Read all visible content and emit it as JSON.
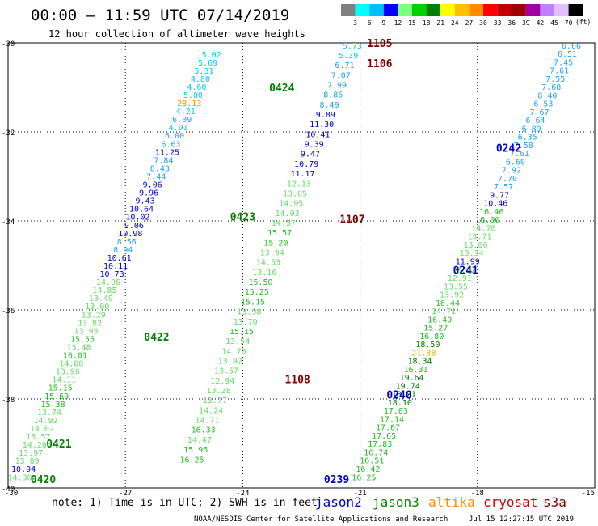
{
  "header": {
    "title": "00:00 – 11:59 UTC 07/14/2019",
    "subtitle": "12 hour collection of altimeter wave heights",
    "units_label": "(ft)"
  },
  "color_scale": {
    "ticks": [
      "3",
      "6",
      "9",
      "12",
      "15",
      "18",
      "21",
      "24",
      "27",
      "30",
      "33",
      "36",
      "39",
      "42",
      "45",
      "70"
    ],
    "colors": [
      "#808080",
      "#00ffff",
      "#00bfff",
      "#0000ff",
      "#7fff7f",
      "#00d000",
      "#008000",
      "#ffff00",
      "#ffc000",
      "#ff8c00",
      "#ff0000",
      "#c00000",
      "#a00000",
      "#a000a0",
      "#c080ff",
      "#e0c0ff",
      "#000000"
    ]
  },
  "footer": {
    "note": "note: 1) Time is in UTC; 2) SWH is in feet",
    "credit": "NOAA/NESDIS Center for Satellite Applications and Research",
    "generated": "Jul 15 12:27:15 UTC 2019"
  },
  "legend": [
    {
      "label": "jason2",
      "color": "#0000cc"
    },
    {
      "label": "jason3",
      "color": "#008000"
    },
    {
      "label": "altika",
      "color": "#ff8c00"
    },
    {
      "label": "cryosat",
      "color": "#cc0000"
    },
    {
      "label": "s3a",
      "color": "#800000"
    }
  ],
  "chart_data": {
    "type": "scatter",
    "title": "12 hour collection of altimeter wave heights",
    "xlim": [
      -30,
      -15
    ],
    "ylim": [
      -40,
      -30
    ],
    "x_ticks": [
      "-30",
      "-27",
      "-24",
      "-21",
      "-18",
      "-15"
    ],
    "y_ticks": [
      "-30",
      "-32",
      "-34",
      "-36",
      "-38",
      "-40"
    ],
    "grid": true,
    "value_colors": [
      {
        "max": 3,
        "color": "#808080"
      },
      {
        "max": 6,
        "color": "#00ccff"
      },
      {
        "max": 9,
        "color": "#1ea0ff"
      },
      {
        "max": 12,
        "color": "#0000cc"
      },
      {
        "max": 15,
        "color": "#66dd66"
      },
      {
        "max": 18,
        "color": "#22bb22"
      },
      {
        "max": 21,
        "color": "#007700"
      },
      {
        "max": 24,
        "color": "#e0c000"
      },
      {
        "max": 27,
        "color": "#ffb000"
      },
      {
        "max": 30,
        "color": "#ff8c00"
      }
    ],
    "tracks": [
      {
        "values": [
          "5.02",
          "5.69",
          "5.31",
          "4.80",
          "4.60",
          "5.00",
          "28.13",
          "4.21",
          "6.09",
          "4.91",
          "6.00",
          "6.63",
          "11.25",
          "7.84",
          "8.43",
          "7.44",
          "9.06",
          "9.96",
          "9.43",
          "10.64",
          "10.02",
          "9.06",
          "10.98",
          "8.56",
          "8.94",
          "10.61",
          "10.11",
          "10.73",
          "14.06",
          "14.85",
          "13.49",
          "13.00",
          "13.29",
          "13.82",
          "13.93",
          "15.55",
          "13.48",
          "16.01",
          "14.88",
          "13.96",
          "14.11",
          "15.15",
          "15.69",
          "15.38",
          "13.74",
          "14.92",
          "14.02",
          "13.57",
          "14.26",
          "13.97",
          "13.89",
          "10.94",
          "14.30"
        ],
        "start": [
          -24.8,
          -30.25
        ],
        "end": [
          -29.7,
          -39.75
        ]
      },
      {
        "values": [
          "5.73",
          "5.39",
          "6.71",
          "7.07",
          "7.99",
          "8.86",
          "8.49",
          "9.89",
          "11.30",
          "10.41",
          "9.39",
          "9.47",
          "10.79",
          "11.17",
          "12.13",
          "13.05",
          "14.95",
          "14.03",
          "14.57",
          "15.57",
          "15.20",
          "13.94",
          "14.53",
          "13.16",
          "15.50",
          "15.25",
          "15.15",
          "13.98",
          "13.70",
          "15.15",
          "13.54",
          "14.70",
          "13.92",
          "13.57",
          "12.94",
          "13.28",
          "13.77",
          "14.24",
          "14.71",
          "16.33",
          "14.47",
          "15.96",
          "16.25"
        ],
        "start": [
          -21.2,
          -30.05
        ],
        "end": [
          -25.3,
          -39.35
        ]
      },
      {
        "values": [
          "6.66",
          "6.51",
          "7.45",
          "7.61",
          "7.55",
          "7.68",
          "8.40",
          "6.53",
          "7.67",
          "6.64",
          "6.89",
          "6.35",
          "7.58",
          "7.61",
          "6.60",
          "7.92",
          "7.70",
          "7.57",
          "9.77",
          "10.46",
          "16.46",
          "16.00",
          "14.70",
          "13.71",
          "13.06",
          "13.34",
          "11.99",
          "13.12",
          "12.91",
          "13.55",
          "13.92",
          "16.44",
          "14.71",
          "16.49",
          "15.27",
          "16.80",
          "18.50",
          "21.38",
          "18.34",
          "16.31",
          "19.64",
          "19.74",
          "18.21",
          "18.10",
          "17.03",
          "17.14",
          "17.67",
          "17.65",
          "17.83",
          "16.74",
          "16.51",
          "16.42",
          "16.25"
        ],
        "start": [
          -15.6,
          -30.05
        ],
        "end": [
          -20.9,
          -39.75
        ]
      }
    ],
    "time_labels": [
      {
        "text": "0424",
        "x": -23.0,
        "y": -31.0,
        "color": "#008000"
      },
      {
        "text": "0423",
        "x": -24.0,
        "y": -33.9,
        "color": "#008000"
      },
      {
        "text": "0422",
        "x": -26.2,
        "y": -36.6,
        "color": "#008000"
      },
      {
        "text": "0421",
        "x": -28.7,
        "y": -39.0,
        "color": "#008000"
      },
      {
        "text": "0420",
        "x": -29.1,
        "y": -39.8,
        "color": "#008000"
      },
      {
        "text": "1105",
        "x": -20.5,
        "y": -30.0,
        "color": "#800000"
      },
      {
        "text": "1106",
        "x": -20.5,
        "y": -30.45,
        "color": "#800000"
      },
      {
        "text": "1107",
        "x": -21.2,
        "y": -33.95,
        "color": "#800000"
      },
      {
        "text": "1108",
        "x": -22.6,
        "y": -37.55,
        "color": "#800000"
      },
      {
        "text": "0242",
        "x": -17.2,
        "y": -32.35,
        "color": "#0000cc"
      },
      {
        "text": "0241",
        "x": -18.3,
        "y": -35.1,
        "color": "#0000cc"
      },
      {
        "text": "0240",
        "x": -20.0,
        "y": -37.9,
        "color": "#0000cc"
      },
      {
        "text": "0239",
        "x": -21.6,
        "y": -39.8,
        "color": "#0000cc"
      }
    ]
  }
}
